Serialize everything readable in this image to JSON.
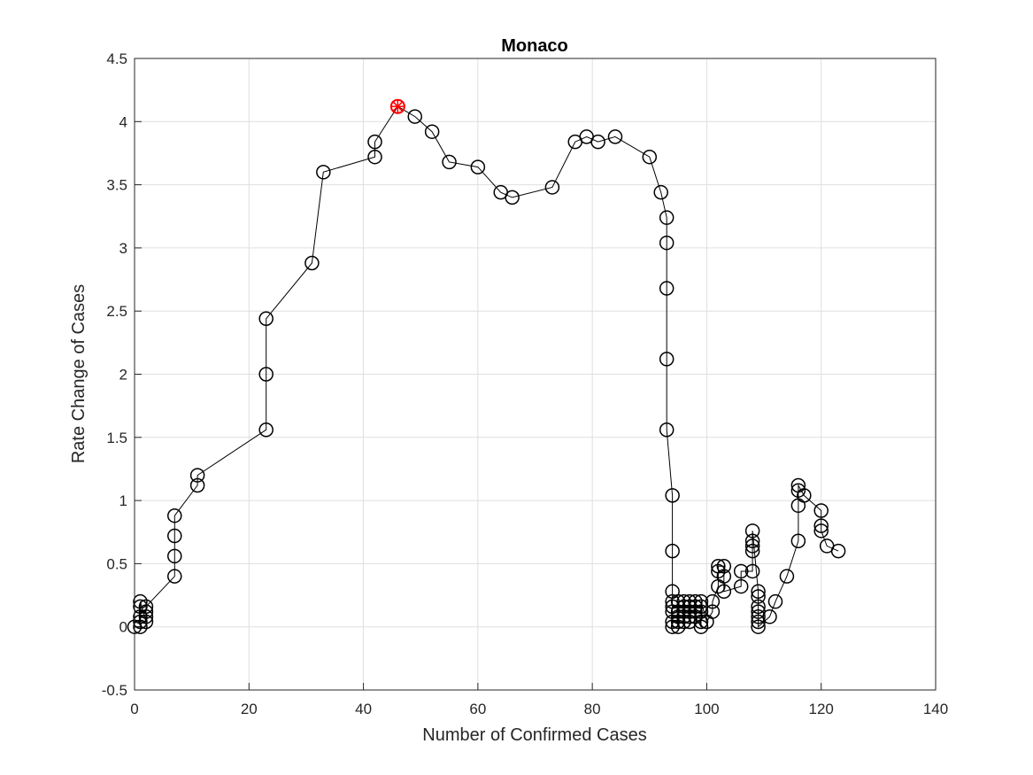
{
  "chart_data": {
    "type": "line",
    "title": "Monaco",
    "xlabel": "Number of Confirmed Cases",
    "ylabel": "Rate Change of Cases",
    "xlim": [
      0,
      140
    ],
    "ylim": [
      -0.5,
      4.5
    ],
    "xticks": [
      0,
      20,
      40,
      60,
      80,
      100,
      120,
      140
    ],
    "yticks": [
      -0.5,
      0,
      0.5,
      1,
      1.5,
      2,
      2.5,
      3,
      3.5,
      4,
      4.5
    ],
    "grid": true,
    "marker": "circle",
    "line_color": "#000000",
    "highlight_color": "#ff0000",
    "series": [
      {
        "x": [
          0,
          1,
          1,
          1,
          1,
          1,
          2,
          2,
          2,
          2,
          7,
          7,
          7,
          7,
          11,
          11,
          23,
          23,
          23,
          31,
          33,
          42,
          42,
          46,
          49,
          52,
          55,
          60,
          64,
          66,
          73,
          77,
          79,
          81,
          84,
          90,
          92,
          93,
          93,
          93,
          93,
          93,
          94,
          94,
          94,
          94,
          94,
          94,
          94,
          94,
          95,
          95,
          95,
          95,
          95,
          96,
          96,
          96,
          96,
          96,
          97,
          97,
          97,
          97,
          97,
          98,
          98,
          98,
          98,
          99,
          99,
          99,
          99,
          99,
          100,
          101,
          101,
          102,
          102,
          102,
          103,
          103,
          103,
          106,
          106,
          108,
          108,
          108,
          108,
          108,
          109,
          109,
          109,
          109,
          109,
          109,
          109,
          111,
          112,
          114,
          116,
          116,
          116,
          116,
          117,
          120,
          120,
          120,
          121,
          123
        ],
        "y": [
          0,
          0,
          0.04,
          0.08,
          0.16,
          0.2,
          0.04,
          0.08,
          0.12,
          0.16,
          0.4,
          0.56,
          0.72,
          0.88,
          1.12,
          1.2,
          1.56,
          2.0,
          2.44,
          2.88,
          3.6,
          3.72,
          3.84,
          4.12,
          4.04,
          3.92,
          3.68,
          3.64,
          3.44,
          3.4,
          3.48,
          3.84,
          3.88,
          3.84,
          3.88,
          3.72,
          3.44,
          3.24,
          3.04,
          2.68,
          2.12,
          1.56,
          1.04,
          0.6,
          0.28,
          0.2,
          0.16,
          0.12,
          0.04,
          0,
          0,
          0.04,
          0.08,
          0.12,
          0.2,
          0.2,
          0.16,
          0.12,
          0.08,
          0.04,
          0.04,
          0.08,
          0.12,
          0.16,
          0.2,
          0.2,
          0.16,
          0.12,
          0.08,
          0,
          0.04,
          0.12,
          0.16,
          0.2,
          0.04,
          0.12,
          0.2,
          0.32,
          0.44,
          0.48,
          0.48,
          0.4,
          0.28,
          0.32,
          0.44,
          0.44,
          0.6,
          0.64,
          0.68,
          0.76,
          0.28,
          0.24,
          0.16,
          0.12,
          0.08,
          0.04,
          0,
          0.08,
          0.2,
          0.4,
          0.68,
          0.96,
          1.08,
          1.12,
          1.04,
          0.92,
          0.8,
          0.76,
          0.64,
          0.6
        ]
      }
    ],
    "highlight": {
      "x": 46,
      "y": 4.12
    }
  }
}
